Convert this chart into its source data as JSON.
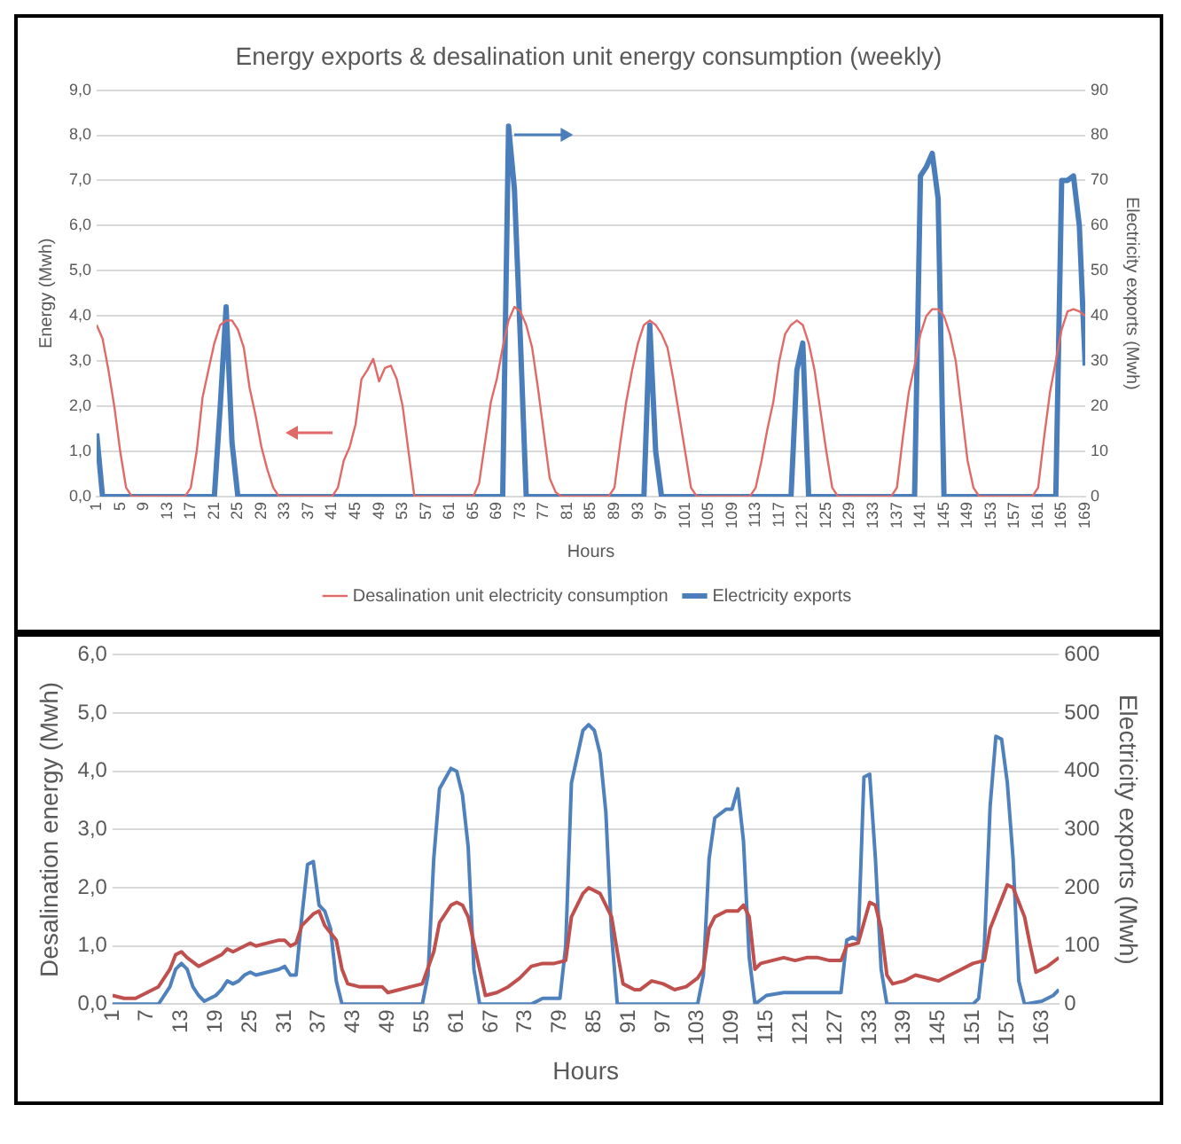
{
  "chart_data": [
    {
      "type": "line",
      "title": "Energy exports & desalination unit energy consumption (weekly)",
      "xlabel": "Hours",
      "ylabel": "Energy (Mwh)",
      "y2label": "Electricity exports (Mwh)",
      "xlim": [
        1,
        169
      ],
      "xticks": [
        1,
        5,
        9,
        13,
        17,
        21,
        25,
        29,
        33,
        37,
        41,
        45,
        49,
        53,
        57,
        61,
        65,
        69,
        73,
        77,
        81,
        85,
        89,
        93,
        97,
        101,
        105,
        109,
        113,
        117,
        121,
        125,
        129,
        133,
        137,
        141,
        145,
        149,
        153,
        157,
        161,
        165,
        169
      ],
      "ylim": [
        0,
        9
      ],
      "yticks": [
        {
          "value": 0,
          "label": "0,0"
        },
        {
          "value": 1,
          "label": "1,0"
        },
        {
          "value": 2,
          "label": "2,0"
        },
        {
          "value": 3,
          "label": "3,0"
        },
        {
          "value": 4,
          "label": "4,0"
        },
        {
          "value": 5,
          "label": "5,0"
        },
        {
          "value": 6,
          "label": "6,0"
        },
        {
          "value": 7,
          "label": "7,0"
        },
        {
          "value": 8,
          "label": "8,0"
        },
        {
          "value": 9,
          "label": "9,0"
        }
      ],
      "y2lim": [
        0,
        90
      ],
      "y2ticks": [
        0,
        10,
        20,
        30,
        40,
        50,
        60,
        70,
        80,
        90
      ],
      "grid": "y",
      "legend": "bottom",
      "marker": "none",
      "series": [
        {
          "name": "Desalination unit electricity consumption",
          "color": "#e06a68",
          "x": [
            1,
            2,
            3,
            4,
            5,
            6,
            7,
            16,
            17,
            18,
            19,
            20,
            21,
            22,
            23,
            24,
            25,
            26,
            27,
            28,
            29,
            30,
            31,
            32,
            41,
            42,
            43,
            44,
            45,
            46,
            47,
            48,
            49,
            50,
            51,
            52,
            53,
            54,
            55,
            65,
            66,
            67,
            68,
            69,
            70,
            71,
            72,
            73,
            74,
            75,
            76,
            77,
            78,
            79,
            80,
            88,
            89,
            90,
            91,
            92,
            93,
            94,
            95,
            96,
            97,
            98,
            99,
            100,
            101,
            102,
            103,
            112,
            113,
            114,
            115,
            116,
            117,
            118,
            119,
            120,
            121,
            122,
            123,
            124,
            125,
            126,
            127,
            136,
            137,
            138,
            139,
            140,
            141,
            142,
            143,
            144,
            145,
            146,
            147,
            148,
            149,
            150,
            151,
            160,
            161,
            162,
            163,
            164,
            165,
            166,
            167,
            168,
            169
          ],
          "values": [
            3.8,
            3.5,
            2.8,
            2.0,
            1.0,
            0.2,
            0,
            0,
            0.2,
            1.0,
            2.2,
            2.8,
            3.4,
            3.8,
            3.9,
            3.9,
            3.7,
            3.3,
            2.4,
            1.8,
            1.1,
            0.6,
            0.2,
            0,
            0,
            0.2,
            0.8,
            1.1,
            1.6,
            2.6,
            2.8,
            3.05,
            2.55,
            2.85,
            2.9,
            2.6,
            2.0,
            1.0,
            0,
            0,
            0.3,
            1.2,
            2.1,
            2.6,
            3.3,
            3.9,
            4.2,
            4.1,
            3.8,
            3.3,
            2.4,
            1.4,
            0.4,
            0.1,
            0,
            0,
            0.2,
            1.2,
            2.1,
            2.8,
            3.4,
            3.8,
            3.9,
            3.8,
            3.6,
            3.3,
            2.6,
            1.8,
            1.0,
            0.2,
            0,
            0,
            0.2,
            0.8,
            1.5,
            2.1,
            3.0,
            3.6,
            3.8,
            3.9,
            3.8,
            3.4,
            2.8,
            1.9,
            1.0,
            0.2,
            0,
            0,
            0.2,
            1.3,
            2.3,
            2.9,
            3.6,
            4.0,
            4.15,
            4.15,
            4.0,
            3.6,
            3.0,
            1.9,
            0.8,
            0.2,
            0,
            0,
            0.2,
            1.3,
            2.3,
            3.0,
            3.7,
            4.1,
            4.15,
            4.1,
            4.0
          ]
        },
        {
          "name": "Electricity exports",
          "color": "#4a7ebb",
          "axis": "y2",
          "x": [
            1,
            2,
            21,
            22,
            23,
            24,
            25,
            70,
            71,
            72,
            73,
            74,
            94,
            95,
            96,
            97,
            119,
            120,
            121,
            122,
            140,
            141,
            142,
            143,
            144,
            145,
            164,
            165,
            166,
            167,
            168,
            169
          ],
          "values": [
            14,
            0,
            0,
            20,
            42,
            12,
            0,
            0,
            82,
            68,
            35,
            0,
            0,
            38,
            10,
            0,
            0,
            28,
            34,
            0,
            0,
            71,
            73,
            76,
            66,
            0,
            0,
            70,
            70,
            71,
            60,
            29
          ]
        }
      ]
    },
    {
      "type": "line",
      "xlabel": "Hours",
      "ylabel": "Desalination energy (Mwh)",
      "y2label": "Electricity exports (Mwh)",
      "xlim": [
        1,
        166
      ],
      "xticks": [
        1,
        7,
        13,
        19,
        25,
        31,
        37,
        43,
        49,
        55,
        61,
        67,
        73,
        79,
        85,
        91,
        97,
        103,
        109,
        115,
        121,
        127,
        133,
        139,
        145,
        151,
        157,
        163
      ],
      "ylim": [
        0,
        6
      ],
      "yticks": [
        {
          "value": 0,
          "label": "0,0"
        },
        {
          "value": 1,
          "label": "1,0"
        },
        {
          "value": 2,
          "label": "2,0"
        },
        {
          "value": 3,
          "label": "3,0"
        },
        {
          "value": 4,
          "label": "4,0"
        },
        {
          "value": 5,
          "label": "5,0"
        },
        {
          "value": 6,
          "label": "6,0"
        }
      ],
      "y2lim": [
        0,
        600
      ],
      "y2ticks": [
        0,
        100,
        200,
        300,
        400,
        500,
        600
      ],
      "grid": "y",
      "marker": "none",
      "series": [
        {
          "color": "#c0504d",
          "x": [
            1,
            3,
            5,
            7,
            9,
            11,
            12,
            13,
            14,
            16,
            18,
            20,
            21,
            22,
            24,
            25,
            26,
            28,
            30,
            31,
            32,
            33,
            34,
            36,
            37,
            38,
            40,
            41,
            42,
            44,
            46,
            48,
            49,
            51,
            53,
            55,
            57,
            58,
            60,
            61,
            62,
            63,
            65,
            66,
            68,
            70,
            72,
            74,
            76,
            78,
            80,
            81,
            83,
            84,
            86,
            88,
            89,
            90,
            92,
            93,
            95,
            97,
            99,
            101,
            103,
            104,
            105,
            106,
            108,
            110,
            111,
            112,
            113,
            114,
            116,
            118,
            120,
            122,
            124,
            126,
            128,
            129,
            131,
            133,
            134,
            135,
            136,
            137,
            139,
            141,
            143,
            145,
            147,
            149,
            151,
            153,
            154,
            156,
            157,
            158,
            160,
            161,
            162,
            164,
            166
          ],
          "values": [
            0.15,
            0.1,
            0.1,
            0.2,
            0.3,
            0.6,
            0.85,
            0.9,
            0.8,
            0.65,
            0.75,
            0.85,
            0.95,
            0.9,
            1.0,
            1.05,
            1.0,
            1.05,
            1.1,
            1.1,
            1.0,
            1.05,
            1.35,
            1.55,
            1.6,
            1.35,
            1.1,
            0.6,
            0.35,
            0.3,
            0.3,
            0.3,
            0.2,
            0.25,
            0.3,
            0.35,
            0.9,
            1.4,
            1.7,
            1.75,
            1.7,
            1.5,
            0.6,
            0.15,
            0.2,
            0.3,
            0.45,
            0.65,
            0.7,
            0.7,
            0.75,
            1.5,
            1.9,
            2.0,
            1.9,
            1.5,
            0.9,
            0.35,
            0.25,
            0.25,
            0.4,
            0.35,
            0.25,
            0.3,
            0.45,
            0.6,
            1.3,
            1.5,
            1.6,
            1.6,
            1.7,
            1.5,
            0.6,
            0.7,
            0.75,
            0.8,
            0.75,
            0.8,
            0.8,
            0.75,
            0.75,
            1.0,
            1.05,
            1.75,
            1.7,
            1.3,
            0.5,
            0.35,
            0.4,
            0.5,
            0.45,
            0.4,
            0.5,
            0.6,
            0.7,
            0.75,
            1.3,
            1.8,
            2.05,
            2.0,
            1.5,
            1.0,
            0.55,
            0.65,
            0.8
          ]
        },
        {
          "color": "#4f81bd",
          "axis": "y2",
          "x": [
            1,
            9,
            11,
            12,
            13,
            14,
            15,
            16,
            17,
            18,
            19,
            20,
            21,
            22,
            23,
            24,
            25,
            26,
            28,
            30,
            31,
            32,
            33,
            34,
            35,
            36,
            37,
            38,
            39,
            40,
            41,
            55,
            56,
            57,
            58,
            60,
            61,
            62,
            63,
            64,
            65,
            74,
            76,
            79,
            80,
            81,
            83,
            84,
            85,
            86,
            87,
            88,
            89,
            103,
            104,
            105,
            106,
            108,
            109,
            110,
            111,
            112,
            113,
            115,
            118,
            120,
            122,
            124,
            126,
            128,
            129,
            130,
            131,
            132,
            133,
            134,
            135,
            136,
            150,
            151,
            152,
            153,
            154,
            155,
            156,
            157,
            158,
            159,
            160,
            163,
            165,
            166
          ],
          "values": [
            0,
            0,
            30,
            60,
            70,
            60,
            30,
            15,
            5,
            10,
            15,
            25,
            40,
            35,
            40,
            50,
            55,
            50,
            55,
            60,
            65,
            50,
            50,
            150,
            240,
            245,
            170,
            160,
            130,
            40,
            0,
            0,
            50,
            250,
            370,
            405,
            400,
            360,
            270,
            60,
            0,
            0,
            10,
            10,
            100,
            380,
            470,
            480,
            470,
            430,
            330,
            120,
            0,
            0,
            50,
            250,
            320,
            335,
            335,
            370,
            280,
            80,
            0,
            15,
            20,
            20,
            20,
            20,
            20,
            20,
            110,
            115,
            110,
            390,
            395,
            250,
            60,
            0,
            0,
            0,
            10,
            100,
            340,
            460,
            455,
            380,
            250,
            40,
            0,
            5,
            15,
            25
          ]
        }
      ]
    }
  ]
}
